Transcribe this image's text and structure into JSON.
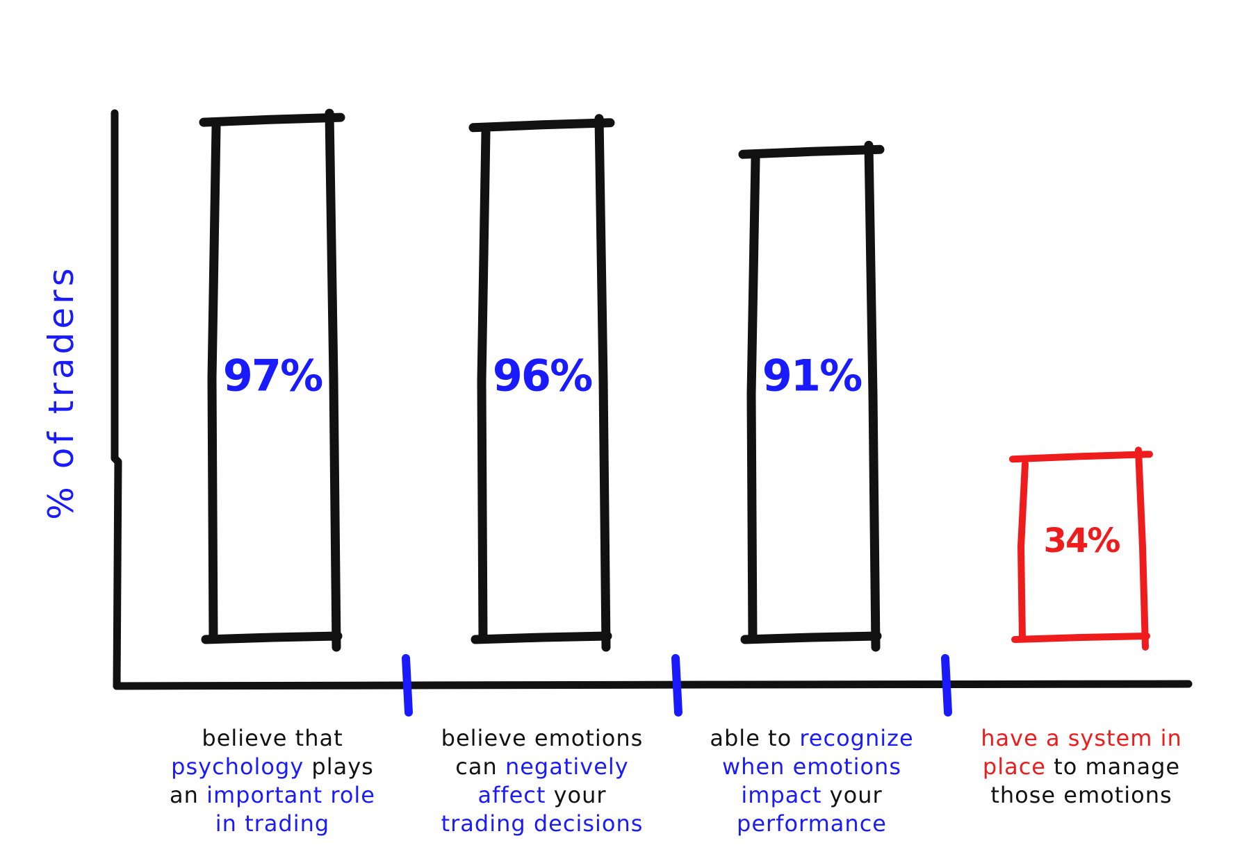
{
  "chart_data": {
    "type": "bar",
    "ylabel": {
      "prefix": "% of ",
      "highlight": "traders"
    },
    "categories": [
      "believe that psychology plays an important role in trading",
      "believe emotions can negatively affect your trading decisions",
      "able to recognize when emotions impact your performance",
      "have a system in place to manage those emotions"
    ],
    "values": [
      97,
      96,
      91,
      34
    ],
    "value_labels": [
      "97%",
      "96%",
      "91%",
      "34%"
    ],
    "bar_colors": [
      "#111111",
      "#111111",
      "#111111",
      "#ee1c1c"
    ],
    "label_colors": [
      "#1a1aff",
      "#1a1aff",
      "#1a1aff",
      "#ee1c1c"
    ],
    "grid": false,
    "category_label_parts": [
      [
        [
          "believe that",
          false
        ],
        [
          "\n",
          false
        ],
        [
          "psychology",
          true
        ],
        [
          " plays",
          false
        ],
        [
          "\n",
          false
        ],
        [
          "an ",
          false
        ],
        [
          "important role",
          true
        ],
        [
          "\n",
          false
        ],
        [
          "in trading",
          true
        ]
      ],
      [
        [
          "believe emotions",
          false
        ],
        [
          "\n",
          false
        ],
        [
          "can ",
          false
        ],
        [
          "negatively",
          true
        ],
        [
          "\n",
          false
        ],
        [
          "affect",
          true
        ],
        [
          " your",
          false
        ],
        [
          "\n",
          false
        ],
        [
          "trading decisions",
          true
        ]
      ],
      [
        [
          "able to ",
          false
        ],
        [
          "recognize",
          true
        ],
        [
          "\n",
          false
        ],
        [
          "when emotions",
          true
        ],
        [
          "\n",
          false
        ],
        [
          "impact",
          true
        ],
        [
          " your",
          false
        ],
        [
          "\n",
          false
        ],
        [
          "performance",
          true
        ]
      ],
      [
        [
          "have a system in",
          true
        ],
        [
          "\n",
          false
        ],
        [
          "place",
          true
        ],
        [
          " to manage",
          false
        ],
        [
          "\n",
          false
        ],
        [
          "those emotions",
          false
        ]
      ]
    ],
    "highlight_colors": [
      "#1a1aff",
      "#1a1aff",
      "#1a1aff",
      "#ee1c1c"
    ]
  }
}
